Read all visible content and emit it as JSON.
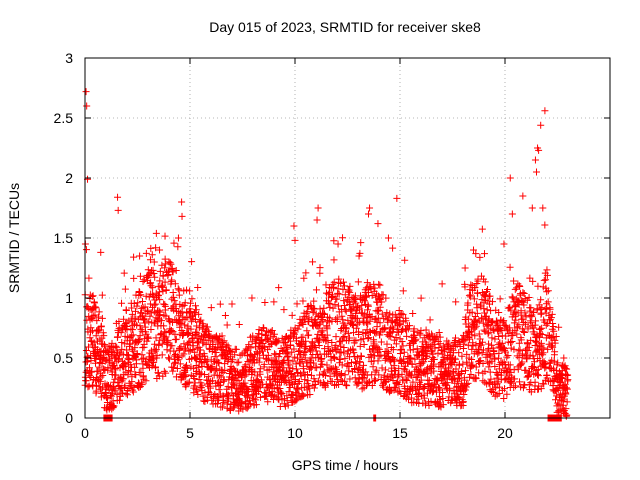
{
  "chart_data": {
    "type": "scatter",
    "title": "Day 015 of 2023, SRMTID for receiver ske8",
    "xlabel": "GPS time / hours",
    "ylabel": "SRMTID / TECUs",
    "xlim": [
      0,
      25
    ],
    "ylim": [
      0,
      3
    ],
    "xticks": [
      0,
      5,
      10,
      15,
      20
    ],
    "xtick_labels": [
      "0",
      "5",
      "10",
      "15",
      "20"
    ],
    "yticks": [
      0,
      0.5,
      1,
      1.5,
      2,
      2.5,
      3
    ],
    "ytick_labels": [
      "0",
      "0.5",
      "1",
      "1.5",
      "2",
      "2.5",
      "3"
    ],
    "grid": true,
    "marker": "+",
    "series": [
      {
        "name": "SRMTID",
        "color": "#ff0000",
        "anchor_x": [
          0.0,
          0.3,
          0.8,
          1.0,
          1.3,
          1.6,
          2.0,
          2.5,
          3.0,
          3.5,
          4.0,
          4.5,
          5.0,
          5.5,
          6.0,
          6.5,
          7.0,
          7.5,
          8.0,
          8.5,
          9.0,
          9.5,
          10.0,
          10.5,
          11.0,
          11.5,
          12.0,
          12.5,
          13.0,
          13.5,
          14.0,
          14.5,
          15.0,
          15.5,
          16.0,
          16.5,
          17.0,
          17.5,
          18.0,
          18.5,
          19.0,
          19.5,
          20.0,
          20.5,
          21.0,
          21.5,
          22.0,
          22.5,
          23.0
        ],
        "anchor_y": [
          0.7,
          0.65,
          0.5,
          0.3,
          0.35,
          0.45,
          0.55,
          0.65,
          0.75,
          0.8,
          0.85,
          0.75,
          0.65,
          0.5,
          0.42,
          0.38,
          0.32,
          0.3,
          0.4,
          0.45,
          0.4,
          0.38,
          0.45,
          0.55,
          0.6,
          0.68,
          0.72,
          0.7,
          0.62,
          0.68,
          0.7,
          0.6,
          0.55,
          0.45,
          0.42,
          0.4,
          0.38,
          0.35,
          0.4,
          0.8,
          0.75,
          0.55,
          0.5,
          0.7,
          0.65,
          0.55,
          0.8,
          0.25,
          0.2
        ],
        "peaks": [
          {
            "x": 0.05,
            "y": 2.72
          },
          {
            "x": 0.08,
            "y": 2.6
          },
          {
            "x": 0.12,
            "y": 1.99
          },
          {
            "x": 0.02,
            "y": 1.45
          },
          {
            "x": 0.75,
            "y": 1.38
          },
          {
            "x": 1.55,
            "y": 1.84
          },
          {
            "x": 1.58,
            "y": 1.73
          },
          {
            "x": 2.6,
            "y": 1.35
          },
          {
            "x": 3.3,
            "y": 1.3
          },
          {
            "x": 3.55,
            "y": 1.4
          },
          {
            "x": 4.45,
            "y": 1.5
          },
          {
            "x": 4.6,
            "y": 1.8
          },
          {
            "x": 4.62,
            "y": 1.68
          },
          {
            "x": 7.0,
            "y": 0.95
          },
          {
            "x": 7.95,
            "y": 1.0
          },
          {
            "x": 9.95,
            "y": 1.6
          },
          {
            "x": 10.0,
            "y": 1.48
          },
          {
            "x": 11.1,
            "y": 1.75
          },
          {
            "x": 11.05,
            "y": 1.65
          },
          {
            "x": 12.05,
            "y": 1.45
          },
          {
            "x": 13.05,
            "y": 1.35
          },
          {
            "x": 13.55,
            "y": 1.75
          },
          {
            "x": 13.5,
            "y": 1.7
          },
          {
            "x": 13.95,
            "y": 1.62
          },
          {
            "x": 14.45,
            "y": 1.5
          },
          {
            "x": 14.85,
            "y": 1.83
          },
          {
            "x": 18.1,
            "y": 1.25
          },
          {
            "x": 18.5,
            "y": 1.4
          },
          {
            "x": 19.95,
            "y": 1.45
          },
          {
            "x": 20.25,
            "y": 2.0
          },
          {
            "x": 20.35,
            "y": 1.7
          },
          {
            "x": 20.85,
            "y": 1.85
          },
          {
            "x": 21.3,
            "y": 1.75
          },
          {
            "x": 21.45,
            "y": 2.15
          },
          {
            "x": 21.55,
            "y": 2.25
          },
          {
            "x": 21.6,
            "y": 2.23
          },
          {
            "x": 21.7,
            "y": 2.44
          },
          {
            "x": 21.9,
            "y": 2.56
          },
          {
            "x": 21.8,
            "y": 1.75
          },
          {
            "x": 21.5,
            "y": 2.05
          },
          {
            "x": 22.8,
            "y": 0.5
          },
          {
            "x": 22.75,
            "y": 0.26
          },
          {
            "x": 22.85,
            "y": 0.25
          },
          {
            "x": 22.7,
            "y": 0.17
          }
        ],
        "zero_clusters": [
          {
            "x_start": 0.9,
            "x_end": 1.3
          },
          {
            "x_start": 13.75,
            "x_end": 13.85
          },
          {
            "x_start": 22.05,
            "x_end": 22.7
          }
        ]
      }
    ]
  }
}
